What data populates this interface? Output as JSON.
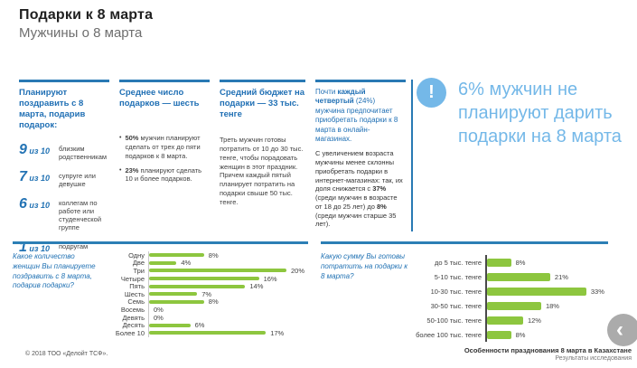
{
  "header": {
    "title": "Подарки к 8 марта",
    "subtitle": "Мужчины о 8 марта"
  },
  "columns": [
    {
      "heading": "Планируют поздравить с 8 марта, подарив подарок:",
      "stats": [
        {
          "number": "9",
          "suffix": " из 10",
          "label": "близким родственникам"
        },
        {
          "number": "7",
          "suffix": " из 10",
          "label": "супруге или девушке"
        },
        {
          "number": "6",
          "suffix": " из 10",
          "label": "коллегам по работе или студенческой группе"
        },
        {
          "number": "1",
          "suffix": " из 10",
          "label": "подругам"
        }
      ]
    },
    {
      "heading": "Среднее число подарков — шесть",
      "bullets": [
        {
          "bold": "50%",
          "text": " мужчин планируют сделать от трех до пяти подарков к 8 марта."
        },
        {
          "bold": "23%",
          "text": " планируют сделать 10 и более подарков."
        }
      ]
    },
    {
      "heading": "Средний бюджет на подарки — 33 тыс. тенге",
      "paragraphs": [
        "Треть мужчин готовы потратить от 10 до 30 тыс. тенге, чтобы порадовать женщин в этот праздник.",
        "Причем каждый пятый планирует потратить на подарки свыше 50 тыс. тенге."
      ]
    },
    {
      "lead": {
        "pre": "Почти ",
        "bold": "каждый четвертый",
        "post": " (24%) мужчина предпочитает приобретать подарки к 8 марта в онлайн-магазинах."
      },
      "detail": {
        "pre": "С увеличением возраста мужчины менее склонны приобретать подарки в интернет-магазинах: так, их доля снижается с ",
        "bold1": "37%",
        "mid": " (среди мужчин в возрасте от 18 до 25 лет) до ",
        "bold2": "8%",
        "post": " (среди мужчин старше 35 лет)."
      }
    }
  ],
  "callout": {
    "icon": "!",
    "text": "6% мужчин не планируют дарить подарки на 8 марта"
  },
  "chart_data": [
    {
      "type": "bar",
      "orientation": "horizontal",
      "question": "Какое количество женщин Вы планируете поздравить с 8 марта, подарив подарки?",
      "categories": [
        "Одну",
        "Две",
        "Три",
        "Четыре",
        "Пять",
        "Шесть",
        "Семь",
        "Восемь",
        "Девять",
        "Десять",
        "Более 10"
      ],
      "values": [
        8,
        4,
        20,
        16,
        14,
        7,
        8,
        0,
        0,
        6,
        17
      ],
      "unit": "%",
      "bar_color": "#8dc63f",
      "xlim": [
        0,
        20
      ],
      "grid": false,
      "value_labels": true
    },
    {
      "type": "bar",
      "orientation": "horizontal",
      "question": "Какую сумму Вы готовы потратить на подарки к 8 марта?",
      "categories": [
        "до 5 тыс. тенге",
        "5-10 тыс. тенге",
        "10-30 тыс. тенге",
        "30-50 тыс. тенге",
        "50-100 тыс. тенге",
        "более 100 тыс. тенге"
      ],
      "values": [
        8,
        21,
        33,
        18,
        12,
        8
      ],
      "unit": "%",
      "bar_color": "#8dc63f",
      "xlim": [
        0,
        33
      ],
      "grid": false,
      "value_labels": true
    }
  ],
  "footer": {
    "copyright": "© 2018 ТОО «Делойт ТСФ».",
    "report_title": "Особенности празднования 8 марта в Казахстане",
    "report_subtitle": "Результаты исследования"
  },
  "nav": {
    "back_icon": "‹"
  },
  "colors": {
    "accent_blue": "#2979b4",
    "heading_blue": "#1f6fb4",
    "light_blue": "#74b8e8",
    "bar_green": "#8dc63f"
  }
}
